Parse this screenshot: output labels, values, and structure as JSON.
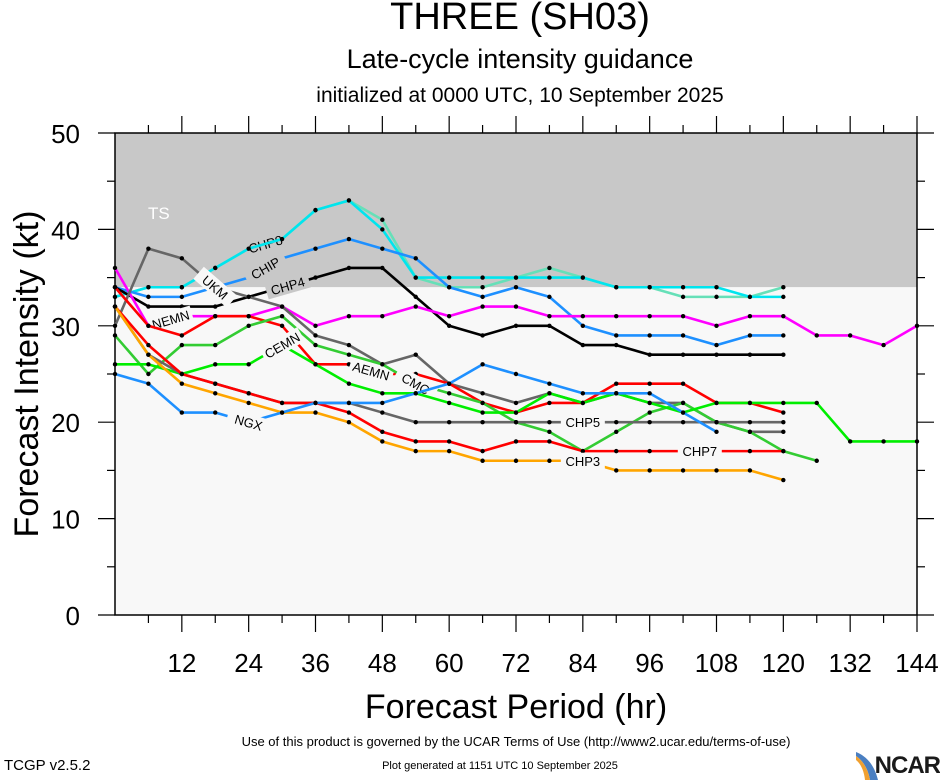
{
  "header": {
    "title": "THREE (SH03)",
    "subtitle": "Late-cycle intensity guidance",
    "init": "initialized at 0000 UTC, 10 September 2025"
  },
  "footer": {
    "terms": "Use of this product is governed by the UCAR Terms of Use (http://www2.ucar.edu/terms-of-use)",
    "generated": "Plot generated at 1151 UTC   10 September 2025",
    "version": "TCGP v2.5.2",
    "logo": "NCAR"
  },
  "chart_data": {
    "type": "line",
    "title": "THREE (SH03)",
    "subtitle": "Late-cycle intensity guidance",
    "xlabel": "Forecast Period (hr)",
    "ylabel": "Forecast Intensity (kt)",
    "xlim": [
      0,
      144
    ],
    "ylim": [
      0,
      50
    ],
    "xticks": [
      12,
      24,
      36,
      48,
      60,
      72,
      84,
      96,
      108,
      120,
      132,
      144
    ],
    "yticks": [
      0,
      10,
      20,
      30,
      40,
      50
    ],
    "grid": false,
    "bands": [
      {
        "label": "TS",
        "from": 34,
        "to": 50,
        "color": "#c8c8c8"
      },
      {
        "label": "",
        "from": 0,
        "to": 34,
        "color": "#f8f8f8"
      }
    ],
    "series": [
      {
        "name": "CHP8",
        "color": "#66e0b8",
        "x": [
          0,
          6,
          12,
          18,
          24,
          30,
          36,
          42,
          48,
          54,
          60,
          66,
          72,
          78,
          84,
          90,
          96,
          102,
          108,
          114,
          120
        ],
        "y": [
          33,
          34,
          34,
          36,
          38,
          39,
          42,
          43,
          41,
          35,
          34,
          34,
          35,
          36,
          35,
          34,
          34,
          33,
          33,
          33,
          34
        ]
      },
      {
        "name": "CHP2",
        "color": "#00e5ee",
        "x": [
          0,
          6,
          12,
          18,
          24,
          30,
          36,
          42,
          48,
          54,
          60,
          66,
          72,
          78,
          84,
          90,
          96,
          102,
          108,
          114,
          120
        ],
        "y": [
          33,
          34,
          34,
          36,
          38,
          39,
          42,
          43,
          40,
          35,
          35,
          35,
          35,
          35,
          35,
          34,
          34,
          34,
          34,
          33,
          33
        ]
      },
      {
        "name": "CHIP",
        "color": "#1e90ff",
        "x": [
          0,
          6,
          12,
          18,
          24,
          30,
          36,
          42,
          48,
          54,
          60,
          66,
          72,
          78,
          84,
          90,
          96,
          102,
          108,
          114,
          120
        ],
        "y": [
          34,
          33,
          33,
          34,
          35,
          37,
          38,
          39,
          38,
          37,
          34,
          33,
          34,
          33,
          30,
          29,
          29,
          29,
          28,
          29,
          29
        ]
      },
      {
        "name": "CHP4",
        "color": "#000000",
        "x": [
          0,
          6,
          12,
          18,
          24,
          30,
          36,
          42,
          48,
          54,
          60,
          66,
          72,
          78,
          84,
          90,
          96,
          102,
          108,
          114,
          120
        ],
        "y": [
          34,
          32,
          32,
          32,
          33,
          34,
          35,
          36,
          36,
          33,
          30,
          29,
          30,
          30,
          28,
          28,
          27,
          27,
          27,
          27,
          27
        ]
      },
      {
        "name": "NEMN",
        "color": "#ff00ff",
        "x": [
          0,
          6,
          12,
          18,
          24,
          30,
          36,
          42,
          48,
          54,
          60,
          66,
          72,
          78,
          84,
          90,
          96,
          102,
          108,
          114,
          120,
          126,
          132,
          138,
          144
        ],
        "y": [
          36,
          30,
          31,
          31,
          31,
          32,
          30,
          31,
          31,
          32,
          31,
          32,
          32,
          31,
          31,
          31,
          31,
          31,
          30,
          31,
          31,
          29,
          29,
          28,
          30
        ]
      },
      {
        "name": "UKM",
        "color": "#666666",
        "x": [
          0,
          6,
          12,
          18,
          24,
          30,
          36,
          42,
          48,
          54,
          60,
          66,
          72,
          78,
          84,
          90,
          96,
          102,
          108,
          114,
          120
        ],
        "y": [
          30,
          38,
          37,
          34,
          33,
          32,
          29,
          28,
          26,
          27,
          24,
          23,
          22,
          23,
          22,
          23,
          22,
          22,
          20,
          19,
          19
        ]
      },
      {
        "name": "AEMN",
        "color": "#ff0000",
        "x": [
          0,
          6,
          12,
          18,
          24,
          30,
          36,
          42,
          48,
          54,
          60,
          66,
          72,
          78,
          84,
          90,
          96,
          102,
          108,
          114,
          120
        ],
        "y": [
          34,
          30,
          29,
          31,
          31,
          30,
          26,
          26,
          25,
          25,
          24,
          22,
          21,
          22,
          22,
          24,
          24,
          24,
          22,
          22,
          21
        ]
      },
      {
        "name": "CMC",
        "color": "#33cc33",
        "x": [
          0,
          6,
          12,
          18,
          24,
          30,
          36,
          42,
          48,
          54,
          60,
          66,
          72,
          78,
          84,
          90,
          96,
          102,
          108,
          114,
          120,
          126
        ],
        "y": [
          29,
          25,
          28,
          28,
          30,
          31,
          28,
          27,
          26,
          24,
          23,
          22,
          20,
          19,
          17,
          19,
          21,
          22,
          20,
          19,
          17,
          16
        ]
      },
      {
        "name": "CEMN",
        "color": "#00ee00",
        "x": [
          0,
          6,
          12,
          18,
          24,
          30,
          36,
          42,
          48,
          54,
          60,
          66,
          72,
          78,
          84,
          90,
          96,
          102,
          108,
          114,
          120,
          126,
          132,
          138,
          144
        ],
        "y": [
          26,
          26,
          25,
          26,
          26,
          28,
          26,
          24,
          23,
          23,
          22,
          21,
          21,
          23,
          22,
          23,
          22,
          21,
          22,
          22,
          22,
          22,
          18,
          18,
          18
        ]
      },
      {
        "name": "CHP5",
        "color": "#666666",
        "x": [
          0,
          6,
          12,
          18,
          24,
          30,
          36,
          42,
          48,
          54,
          60,
          66,
          72,
          78,
          84,
          90,
          96,
          102,
          108,
          114,
          120
        ],
        "y": [
          32,
          27,
          25,
          24,
          23,
          22,
          22,
          22,
          21,
          20,
          20,
          20,
          20,
          20,
          20,
          20,
          20,
          20,
          20,
          20,
          20
        ]
      },
      {
        "name": "CHP7",
        "color": "#ff0000",
        "x": [
          0,
          6,
          12,
          18,
          24,
          30,
          36,
          42,
          48,
          54,
          60,
          66,
          72,
          78,
          84,
          90,
          96,
          102,
          108,
          114,
          120
        ],
        "y": [
          32,
          28,
          25,
          24,
          23,
          22,
          22,
          21,
          19,
          18,
          18,
          17,
          18,
          18,
          17,
          17,
          17,
          17,
          17,
          17,
          17
        ]
      },
      {
        "name": "CHP3",
        "color": "#ffa500",
        "x": [
          0,
          6,
          12,
          18,
          24,
          30,
          36,
          42,
          48,
          54,
          60,
          66,
          72,
          78,
          84,
          90,
          96,
          102,
          108,
          114,
          120
        ],
        "y": [
          32,
          27,
          24,
          23,
          22,
          21,
          21,
          20,
          18,
          17,
          17,
          16,
          16,
          16,
          16,
          15,
          15,
          15,
          15,
          15,
          14
        ]
      },
      {
        "name": "NGX",
        "color": "#1e90ff",
        "x": [
          0,
          6,
          12,
          18,
          24,
          30,
          36,
          42,
          48,
          54,
          60,
          66,
          72,
          78,
          84,
          90,
          96,
          102,
          108,
          114,
          120
        ],
        "y": [
          25,
          24,
          21,
          21,
          20,
          21,
          22,
          22,
          22,
          23,
          24,
          26,
          25,
          24,
          23,
          23,
          23,
          21,
          19,
          null,
          null
        ]
      }
    ]
  }
}
